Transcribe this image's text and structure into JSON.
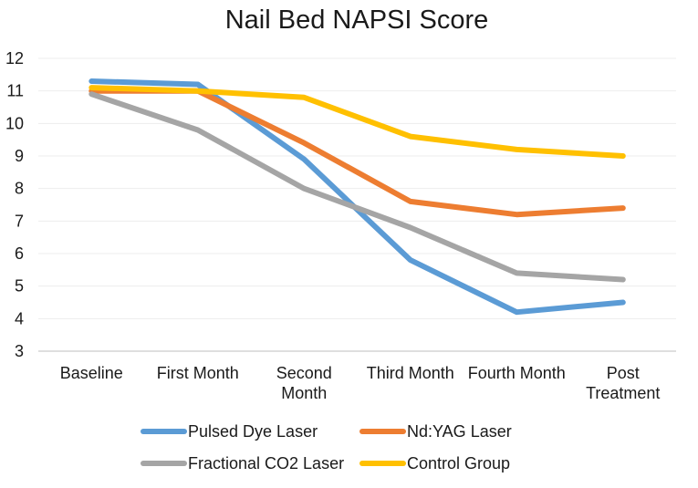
{
  "chart_data": {
    "type": "line",
    "title": "Nail Bed NAPSI Score",
    "xlabel": "",
    "ylabel": "",
    "categories": [
      [
        "Baseline"
      ],
      [
        "First Month"
      ],
      [
        "Second",
        "Month"
      ],
      [
        "Third Month"
      ],
      [
        "Fourth Month"
      ],
      [
        "Post",
        "Treatment"
      ]
    ],
    "ylim": [
      3,
      12
    ],
    "yticks": [
      3,
      4,
      5,
      6,
      7,
      8,
      9,
      10,
      11,
      12
    ],
    "grid": true,
    "legend_position": "bottom",
    "series": [
      {
        "name": "Pulsed Dye Laser",
        "color": "#5b9bd5",
        "values": [
          11.3,
          11.2,
          8.9,
          5.8,
          4.2,
          4.5
        ]
      },
      {
        "name": "Nd:YAG Laser",
        "color": "#ed7d31",
        "values": [
          11.0,
          11.0,
          9.4,
          7.6,
          7.2,
          7.4
        ]
      },
      {
        "name": "Fractional CO2 Laser",
        "color": "#a5a5a5",
        "values": [
          10.9,
          9.8,
          8.0,
          6.8,
          5.4,
          5.2
        ]
      },
      {
        "name": "Control Group",
        "color": "#ffc000",
        "values": [
          11.1,
          11.0,
          10.8,
          9.6,
          9.2,
          9.0
        ]
      }
    ]
  }
}
